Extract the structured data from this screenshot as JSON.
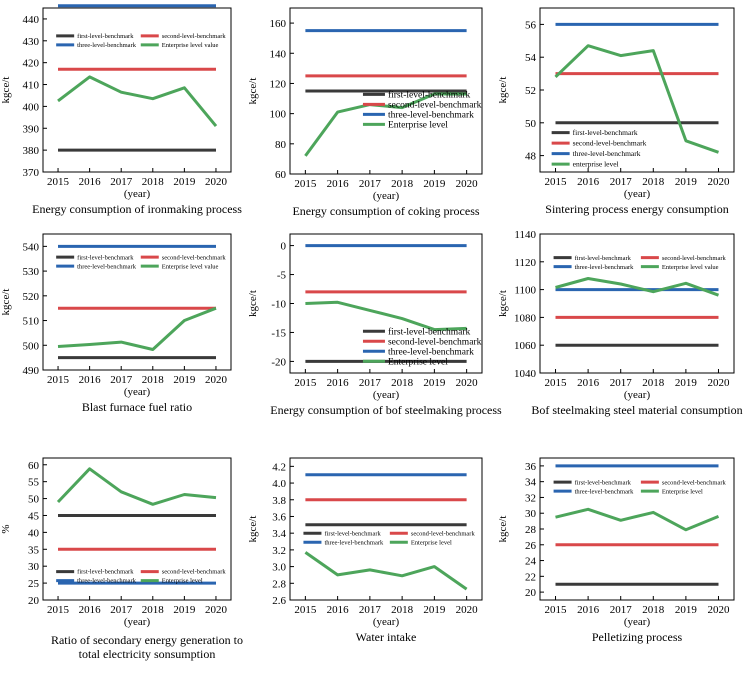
{
  "colors": {
    "first": "#3a3a3a",
    "second": "#d9484a",
    "third": "#2a65b0",
    "enterprise": "#4da55b"
  },
  "chart_data": [
    {
      "type": "line",
      "title": "Energy consumption of ironmaking process",
      "ylabel": "kgce/t",
      "xlabel": "(year)",
      "x": [
        2015,
        2016,
        2017,
        2018,
        2019,
        2020
      ],
      "ylim": [
        370,
        445
      ],
      "yticks": [
        370,
        380,
        390,
        400,
        410,
        420,
        430,
        440
      ],
      "legend": "top-compact",
      "series": [
        {
          "name": "first-level-benchmark",
          "color": "first",
          "values": [
            380,
            380,
            380,
            380,
            380,
            380
          ]
        },
        {
          "name": "second-level-benchmark",
          "color": "second",
          "values": [
            417,
            417,
            417,
            417,
            417,
            417
          ]
        },
        {
          "name": "three-level-benchmark",
          "color": "third",
          "values": [
            446,
            446,
            446,
            446,
            446,
            446
          ]
        },
        {
          "name": "Enterprise level value",
          "color": "enterprise",
          "values": [
            402.5,
            413.5,
            406.5,
            403.5,
            408.5,
            391
          ]
        }
      ]
    },
    {
      "type": "line",
      "title": "Energy consumption of coking process",
      "ylabel": "kgce/t",
      "xlabel": "(year)",
      "x": [
        2015,
        2016,
        2017,
        2018,
        2019,
        2020
      ],
      "ylim": [
        60,
        170
      ],
      "yticks": [
        60,
        80,
        100,
        120,
        140,
        160
      ],
      "legend": "stacked-large",
      "series": [
        {
          "name": "first-level-benchmark",
          "color": "first",
          "values": [
            115,
            115,
            115,
            115,
            115,
            115
          ]
        },
        {
          "name": "second-level-benchmark",
          "color": "second",
          "values": [
            125,
            125,
            125,
            125,
            125,
            125
          ]
        },
        {
          "name": "three-level-benchmark",
          "color": "third",
          "values": [
            155,
            155,
            155,
            155,
            155,
            155
          ]
        },
        {
          "name": "Enterprise level",
          "color": "enterprise",
          "values": [
            72,
            101,
            106,
            104,
            113,
            113
          ]
        }
      ]
    },
    {
      "type": "line",
      "title": "Sintering process energy consumption",
      "ylabel": "kgce/t",
      "xlabel": "(year)",
      "x": [
        2015,
        2016,
        2017,
        2018,
        2019,
        2020
      ],
      "ylim": [
        47,
        57
      ],
      "yticks": [
        48,
        50,
        52,
        54,
        56
      ],
      "legend": "stacked-small",
      "series": [
        {
          "name": "first-level-benchmark",
          "color": "first",
          "values": [
            50,
            50,
            50,
            50,
            50,
            50
          ]
        },
        {
          "name": "second-level-benchmark",
          "color": "second",
          "values": [
            53,
            53,
            53,
            53,
            53,
            53
          ]
        },
        {
          "name": "three-level-benchmark",
          "color": "third",
          "values": [
            56,
            56,
            56,
            56,
            56,
            56
          ]
        },
        {
          "name": "enterprise level",
          "color": "enterprise",
          "values": [
            52.8,
            54.7,
            54.1,
            54.4,
            48.9,
            48.2
          ]
        }
      ]
    },
    {
      "type": "line",
      "title": "Blast furnace fuel ratio",
      "ylabel": "kgce/t",
      "xlabel": "(year)",
      "x": [
        2015,
        2016,
        2017,
        2018,
        2019,
        2020
      ],
      "ylim": [
        490,
        545
      ],
      "yticks": [
        490,
        500,
        510,
        520,
        530,
        540
      ],
      "legend": "top-compact",
      "series": [
        {
          "name": "first-level-benchmark",
          "color": "first",
          "values": [
            495,
            495,
            495,
            495,
            495,
            495
          ]
        },
        {
          "name": "second-level-benchmark",
          "color": "second",
          "values": [
            515,
            515,
            515,
            515,
            515,
            515
          ]
        },
        {
          "name": "three-level-benchmark",
          "color": "third",
          "values": [
            540,
            540,
            540,
            540,
            540,
            540
          ]
        },
        {
          "name": "Enterprise level value",
          "color": "enterprise",
          "values": [
            499.5,
            500.3,
            501.3,
            498.3,
            510,
            515
          ]
        }
      ]
    },
    {
      "type": "line",
      "title": "Energy consumption of bof steelmaking process",
      "ylabel": "kgce/t",
      "xlabel": "(year)",
      "x": [
        2015,
        2016,
        2017,
        2018,
        2019,
        2020
      ],
      "ylim": [
        -22,
        2
      ],
      "yticks": [
        -20,
        -15,
        -10,
        -5,
        0
      ],
      "legend": "stacked-large",
      "series": [
        {
          "name": "first-level-benchmark",
          "color": "first",
          "values": [
            -20,
            -20,
            -20,
            -20,
            -20,
            -20
          ]
        },
        {
          "name": "second-level-benchmark",
          "color": "second",
          "values": [
            -8,
            -8,
            -8,
            -8,
            -8,
            -8
          ]
        },
        {
          "name": "three-level-benchmark",
          "color": "third",
          "values": [
            0,
            0,
            0,
            0,
            0,
            0
          ]
        },
        {
          "name": "Enterprise level",
          "color": "enterprise",
          "values": [
            -10,
            -9.8,
            -11.2,
            -12.6,
            -14.5,
            -14.3
          ]
        }
      ]
    },
    {
      "type": "line",
      "title": "Bof steelmaking steel material consumption",
      "ylabel": "kgce/t",
      "xlabel": "(year)",
      "x": [
        2015,
        2016,
        2017,
        2018,
        2019,
        2020
      ],
      "ylim": [
        1040,
        1140
      ],
      "yticks": [
        1040,
        1060,
        1080,
        1100,
        1120,
        1140
      ],
      "legend": "top-compact",
      "series": [
        {
          "name": "first-level-benchmark",
          "color": "first",
          "values": [
            1060,
            1060,
            1060,
            1060,
            1060,
            1060
          ]
        },
        {
          "name": "second-level-benchmark",
          "color": "second",
          "values": [
            1080,
            1080,
            1080,
            1080,
            1080,
            1080
          ]
        },
        {
          "name": "three-level-benchmark",
          "color": "third",
          "values": [
            1100,
            1100,
            1100,
            1100,
            1100,
            1100
          ]
        },
        {
          "name": "Enterprise level value",
          "color": "enterprise",
          "values": [
            1101.5,
            1108,
            1104,
            1098.5,
            1104.5,
            1096
          ]
        }
      ]
    },
    {
      "type": "line",
      "title": "Ratio of secondary energy generation to total electricity sonsumption",
      "title_lines": [
        "Ratio of secondary energy generation to",
        "total electricity sonsumption"
      ],
      "ylabel": "%",
      "xlabel": "(year)",
      "x": [
        2015,
        2016,
        2017,
        2018,
        2019,
        2020
      ],
      "ylim": [
        20,
        62
      ],
      "yticks": [
        20,
        25,
        30,
        35,
        40,
        45,
        50,
        55,
        60
      ],
      "legend": "bottom-compact",
      "series": [
        {
          "name": "first-level-benchmark",
          "color": "first",
          "values": [
            45,
            45,
            45,
            45,
            45,
            45
          ]
        },
        {
          "name": "second-level-benchmark",
          "color": "second",
          "values": [
            35,
            35,
            35,
            35,
            35,
            35
          ]
        },
        {
          "name": "three-level-benchmark",
          "color": "third",
          "values": [
            25,
            25,
            25,
            25,
            25,
            25
          ]
        },
        {
          "name": "Enterprise level",
          "color": "enterprise",
          "values": [
            49,
            58.8,
            52,
            48.3,
            51.2,
            50.3
          ]
        }
      ]
    },
    {
      "type": "line",
      "title": "Water intake",
      "ylabel": "kgce/t",
      "xlabel": "(year)",
      "x": [
        2015,
        2016,
        2017,
        2018,
        2019,
        2020
      ],
      "ylim": [
        2.6,
        4.3
      ],
      "yticks": [
        2.6,
        2.8,
        3.0,
        3.2,
        3.4,
        3.6,
        3.8,
        4.0,
        4.2
      ],
      "ytick_labels": [
        "2.6",
        "2.8",
        "3.0",
        "3.2",
        "3.4",
        "3.6",
        "3.8",
        "4.0",
        "4.2"
      ],
      "legend": "middle-compact",
      "series": [
        {
          "name": "first-level-benchmark",
          "color": "first",
          "values": [
            3.5,
            3.5,
            3.5,
            3.5,
            3.5,
            3.5
          ]
        },
        {
          "name": "second-level-benchmark",
          "color": "second",
          "values": [
            3.8,
            3.8,
            3.8,
            3.8,
            3.8,
            3.8
          ]
        },
        {
          "name": "three-level-benchmark",
          "color": "third",
          "values": [
            4.1,
            4.1,
            4.1,
            4.1,
            4.1,
            4.1
          ]
        },
        {
          "name": "Enterprise level",
          "color": "enterprise",
          "values": [
            3.17,
            2.9,
            2.96,
            2.89,
            3.0,
            2.73
          ]
        }
      ]
    },
    {
      "type": "line",
      "title": "Pelletizing process",
      "ylabel": "kgce/t",
      "xlabel": "(year)",
      "x": [
        2015,
        2016,
        2017,
        2018,
        2019,
        2020
      ],
      "ylim": [
        19,
        37
      ],
      "yticks": [
        20,
        22,
        24,
        26,
        28,
        30,
        32,
        34,
        36
      ],
      "legend": "top-compact",
      "series": [
        {
          "name": "first-level-benchmark",
          "color": "first",
          "values": [
            21,
            21,
            21,
            21,
            21,
            21
          ]
        },
        {
          "name": "second-level-benchmark",
          "color": "second",
          "values": [
            26,
            26,
            26,
            26,
            26,
            26
          ]
        },
        {
          "name": "three-level-benchmark",
          "color": "third",
          "values": [
            36,
            36,
            36,
            36,
            36,
            36
          ]
        },
        {
          "name": "Enterprise level",
          "color": "enterprise",
          "values": [
            29.5,
            30.5,
            29.1,
            30.1,
            27.9,
            29.6
          ]
        }
      ]
    }
  ]
}
